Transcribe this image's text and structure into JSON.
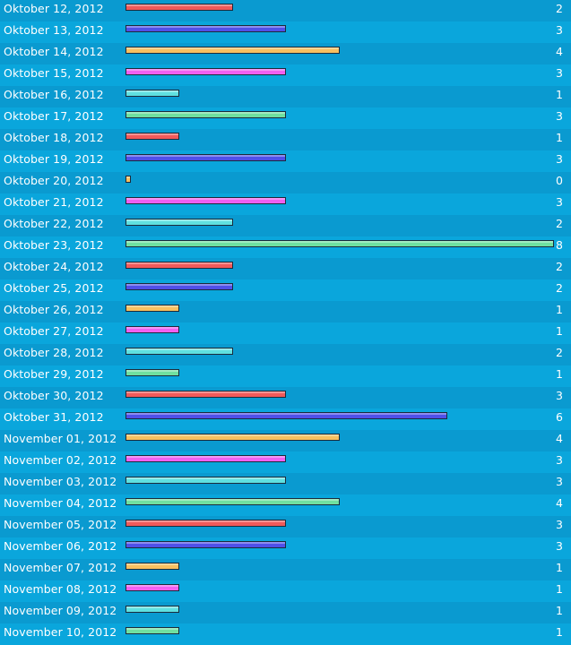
{
  "chart_data": {
    "type": "bar",
    "orientation": "horizontal",
    "max": 8,
    "colors": [
      "#f05a5a",
      "#5050e8",
      "#f8c060",
      "#f060f0",
      "#60e0e0",
      "#70e0a0"
    ],
    "categories": [
      "Oktober 12, 2012",
      "Oktober 13, 2012",
      "Oktober 14, 2012",
      "Oktober 15, 2012",
      "Oktober 16, 2012",
      "Oktober 17, 2012",
      "Oktober 18, 2012",
      "Oktober 19, 2012",
      "Oktober 20, 2012",
      "Oktober 21, 2012",
      "Oktober 22, 2012",
      "Oktober 23, 2012",
      "Oktober 24, 2012",
      "Oktober 25, 2012",
      "Oktober 26, 2012",
      "Oktober 27, 2012",
      "Oktober 28, 2012",
      "Oktober 29, 2012",
      "Oktober 30, 2012",
      "Oktober 31, 2012",
      "November 01, 2012",
      "November 02, 2012",
      "November 03, 2012",
      "November 04, 2012",
      "November 05, 2012",
      "November 06, 2012",
      "November 07, 2012",
      "November 08, 2012",
      "November 09, 2012",
      "November 10, 2012"
    ],
    "values": [
      2,
      3,
      4,
      3,
      1,
      3,
      1,
      3,
      0,
      3,
      2,
      8,
      2,
      2,
      1,
      1,
      2,
      1,
      3,
      6,
      4,
      3,
      3,
      4,
      3,
      3,
      1,
      1,
      1,
      1
    ]
  }
}
